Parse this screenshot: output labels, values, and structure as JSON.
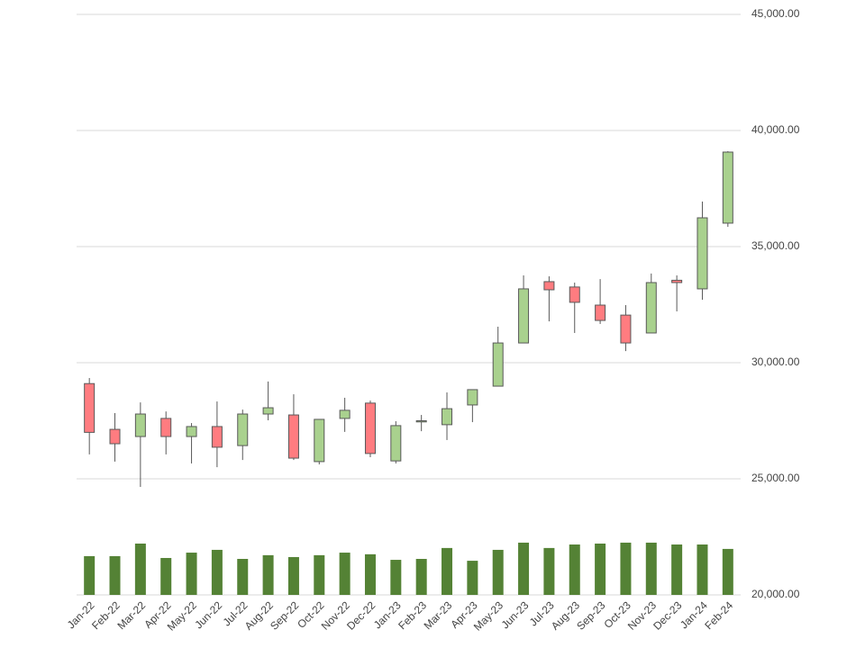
{
  "chart_data": {
    "type": "candlestick",
    "categories": [
      "Jan-22",
      "Feb-22",
      "Mar-22",
      "Apr-22",
      "May-22",
      "Jun-22",
      "Jul-22",
      "Aug-22",
      "Sep-22",
      "Oct-22",
      "Nov-22",
      "Dec-22",
      "Jan-23",
      "Feb-23",
      "Mar-23",
      "Apr-23",
      "May-23",
      "Jun-23",
      "Jul-23",
      "Aug-23",
      "Sep-23",
      "Oct-23",
      "Nov-23",
      "Dec-23",
      "Jan-24",
      "Feb-24"
    ],
    "open": [
      29100,
      27130,
      26820,
      27600,
      26820,
      27250,
      26430,
      27790,
      27750,
      25740,
      27600,
      28260,
      25770,
      27450,
      27330,
      28180,
      28990,
      30850,
      33490,
      33260,
      32480,
      32050,
      31280,
      33550,
      33180,
      36010
    ],
    "high": [
      29340,
      27830,
      28290,
      27900,
      27400,
      28330,
      27980,
      29190,
      28640,
      27560,
      28490,
      28370,
      27480,
      27750,
      28720,
      28840,
      31550,
      33760,
      33720,
      33450,
      33600,
      32480,
      33840,
      33760,
      36940,
      39110
    ],
    "low": [
      26050,
      25740,
      24650,
      26050,
      25660,
      25500,
      25810,
      27520,
      25810,
      25620,
      27020,
      25930,
      25660,
      27050,
      26670,
      27440,
      28990,
      30850,
      31780,
      31280,
      31670,
      30500,
      31280,
      32210,
      32710,
      35850
    ],
    "close": [
      27000,
      26510,
      27790,
      26820,
      27250,
      26360,
      27790,
      28060,
      25890,
      27560,
      27950,
      26090,
      27290,
      27500,
      28020,
      28840,
      30850,
      33180,
      33140,
      32600,
      31820,
      30850,
      33450,
      33450,
      36240,
      39070
    ],
    "volume": [
      21670,
      21670,
      22210,
      21590,
      21820,
      21940,
      21550,
      21710,
      21630,
      21710,
      21820,
      21750,
      21510,
      21550,
      22020,
      21470,
      21940,
      22250,
      22020,
      22170,
      22210,
      22250,
      22250,
      22170,
      22170,
      21980
    ],
    "up_color": "#a9d18e",
    "down_color": "#ff7c80",
    "volume_color": "#548235",
    "ylim": [
      20000,
      45000
    ],
    "yticks": [
      {
        "value": 20000,
        "label": "20,000.00"
      },
      {
        "value": 25000,
        "label": "25,000.00"
      },
      {
        "value": 30000,
        "label": "30,000.00"
      },
      {
        "value": 35000,
        "label": "35,000.00"
      },
      {
        "value": 40000,
        "label": "40,000.00"
      },
      {
        "value": 45000,
        "label": "45,000.00"
      }
    ],
    "grid": true
  }
}
